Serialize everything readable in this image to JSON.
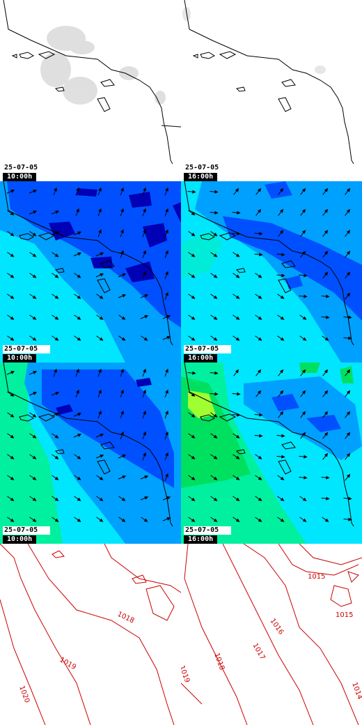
{
  "panels": [
    {
      "id": "cloud-am",
      "date": "25-07-05",
      "time": "10:00h"
    },
    {
      "id": "cloud-pm",
      "date": "25-07-05",
      "time": "16:00h"
    },
    {
      "id": "wind10-am",
      "date": "25-07-05",
      "time": "10:00h"
    },
    {
      "id": "wind10-pm",
      "date": "25-07-05",
      "time": "16:00h"
    },
    {
      "id": "wind2-am",
      "date": "25-07-05",
      "time": "10:00h"
    },
    {
      "id": "wind2-pm",
      "date": "25-07-05",
      "time": "16:00h"
    },
    {
      "id": "pressure-am"
    },
    {
      "id": "pressure-pm"
    }
  ],
  "pressure_labels_am": [
    "1018",
    "1019",
    "1020"
  ],
  "pressure_labels_pm": [
    "1015",
    "1015",
    "1016",
    "1017",
    "1018",
    "1019",
    "1014"
  ],
  "colors": {
    "coast": "#000000",
    "isobar": "#cc0000",
    "field_dark": "#0000b4",
    "field_mid": "#0050ff",
    "field_light": "#00a0ff",
    "field_cyan": "#00e6ff",
    "field_green": "#00f078",
    "field_lime": "#a0ff30"
  }
}
